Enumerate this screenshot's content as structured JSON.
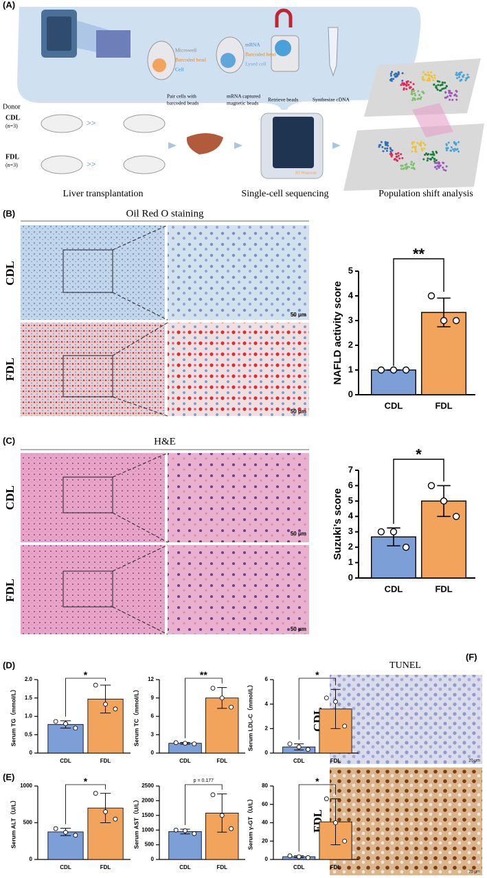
{
  "figure": {
    "panel_labels": [
      "(A)",
      "(B)",
      "(C)",
      "(D)",
      "(E)",
      "(F)"
    ],
    "panel_a": {
      "legend_1": [
        "Microwell",
        "Barcoded bead",
        "Cell"
      ],
      "legend_2": [
        "mRNA",
        "Barcoded bead",
        "Lysed cell"
      ],
      "steps": [
        [
          "Pair cells with",
          "barcoded beads"
        ],
        [
          "mRNA captured",
          "magnetic beads"
        ],
        [
          "Retrieve beads"
        ],
        [
          "Synthesize cDNA"
        ]
      ],
      "donor": "Donor",
      "groups": [
        {
          "name": "CDL",
          "n": "(n=3)"
        },
        {
          "name": "FDL",
          "n": "(n=3)"
        }
      ],
      "arrow_text": ">>",
      "device_brand": "BD Rhapsody",
      "captions": [
        "Liver transplantation",
        "Single-cell sequencing",
        "Population shift analysis"
      ]
    },
    "panel_b": {
      "title": "Oil Red O staining",
      "rows": [
        "CDL",
        "FDL"
      ],
      "scale_bar": "50 μm"
    },
    "panel_c": {
      "title": "H&E",
      "rows": [
        "CDL",
        "FDL"
      ],
      "scale_bar": "50 μm"
    },
    "panel_f": {
      "title": "TUNEL",
      "rows": [
        "CDL",
        "FDL"
      ],
      "scale_bar": "20 μm"
    }
  },
  "chart_data": [
    {
      "type": "bar",
      "ylabel": "NAFLD activity score",
      "categories": [
        "CDL",
        "FDL"
      ],
      "colors": [
        "#7b9fd6",
        "#f2a35c"
      ],
      "values": [
        1,
        3.33
      ],
      "error": [
        0,
        0.58
      ],
      "points": [
        [
          1,
          1,
          1
        ],
        [
          4,
          3,
          3
        ]
      ],
      "ylim": [
        0,
        5
      ],
      "yticks": [
        0,
        1,
        2,
        3,
        4,
        5
      ],
      "annotation": "**"
    },
    {
      "type": "bar",
      "ylabel": "Suzuki’s score",
      "categories": [
        "CDL",
        "FDL"
      ],
      "colors": [
        "#7b9fd6",
        "#f2a35c"
      ],
      "values": [
        2.67,
        5
      ],
      "error": [
        0.58,
        1
      ],
      "points": [
        [
          3,
          3,
          2
        ],
        [
          6,
          5,
          4
        ]
      ],
      "ylim": [
        0,
        7
      ],
      "yticks": [
        0,
        1,
        2,
        3,
        4,
        5,
        6,
        7
      ],
      "annotation": "*"
    },
    {
      "type": "bar",
      "ylabel": "Serum TG（mmol/L）",
      "categories": [
        "CDL",
        "FDL"
      ],
      "colors": [
        "#7b9fd6",
        "#f2a35c"
      ],
      "values": [
        0.78,
        1.47
      ],
      "error": [
        0.1,
        0.38
      ],
      "points": [
        [
          0.86,
          0.8,
          0.68
        ],
        [
          1.85,
          1.33,
          1.2
        ]
      ],
      "ylim": [
        0,
        2
      ],
      "yticks": [
        0,
        0.5,
        {
          "value": 1,
          "label": "1.0"
        },
        1.5,
        {
          "value": 2,
          "label": "2.0"
        }
      ],
      "annotation": "*"
    },
    {
      "type": "bar",
      "ylabel": "Serum TC（mmol/L）",
      "categories": [
        "CDL",
        "FDL"
      ],
      "colors": [
        "#7b9fd6",
        "#f2a35c"
      ],
      "values": [
        1.6,
        9
      ],
      "error": [
        0.15,
        1.7
      ],
      "points": [
        [
          1.7,
          1.6,
          1.5
        ],
        [
          10.6,
          9,
          7.5
        ]
      ],
      "ylim": [
        0,
        12
      ],
      "yticks": [
        0,
        3,
        6,
        9,
        12
      ],
      "annotation": "**"
    },
    {
      "type": "bar",
      "ylabel": "Serum LDL-C（mmol/L）",
      "categories": [
        "CDL",
        "FDL"
      ],
      "colors": [
        "#7b9fd6",
        "#f2a35c"
      ],
      "values": [
        0.5,
        3.6
      ],
      "error": [
        0.25,
        1.6
      ],
      "points": [
        [
          0.75,
          0.5,
          0.3
        ],
        [
          4.5,
          4.2,
          2.2
        ]
      ],
      "ylim": [
        0,
        6
      ],
      "yticks": [
        0,
        2,
        4,
        6
      ],
      "annotation": "*"
    },
    {
      "type": "bar",
      "ylabel": "Serum ALT（U/L）",
      "categories": [
        "CDL",
        "FDL"
      ],
      "colors": [
        "#7b9fd6",
        "#f2a35c"
      ],
      "values": [
        375,
        700
      ],
      "error": [
        50,
        200
      ],
      "points": [
        [
          420,
          370,
          330
        ],
        [
          900,
          650,
          550
        ]
      ],
      "ylim": [
        0,
        1000
      ],
      "yticks": [
        0,
        500,
        1000
      ],
      "annotation": "*"
    },
    {
      "type": "bar",
      "ylabel": "Serum AST（U/L）",
      "categories": [
        "CDL",
        "FDL"
      ],
      "colors": [
        "#7b9fd6",
        "#f2a35c"
      ],
      "values": [
        950,
        1580
      ],
      "error": [
        80,
        650
      ],
      "points": [
        [
          1000,
          980,
          880
        ],
        [
          2200,
          1500,
          1050
        ]
      ],
      "ylim": [
        0,
        2500
      ],
      "yticks": [
        0,
        500,
        1000,
        1500,
        2000,
        2500
      ],
      "annotation": "p = 0.177"
    },
    {
      "type": "bar",
      "ylabel": "Serum γ-GT（U/L）",
      "categories": [
        "CDL",
        "FDL"
      ],
      "colors": [
        "#7b9fd6",
        "#f2a35c"
      ],
      "values": [
        3,
        41
      ],
      "error": [
        1,
        25
      ],
      "points": [
        [
          4,
          3,
          2
        ],
        [
          66,
          40,
          20
        ]
      ],
      "ylim": [
        0,
        80
      ],
      "yticks": [
        0,
        20,
        40,
        60,
        80
      ],
      "annotation": "*"
    }
  ]
}
